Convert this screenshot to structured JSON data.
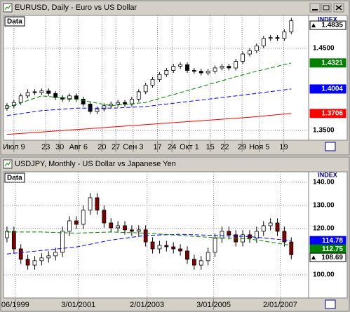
{
  "chart_data": [
    {
      "type": "candlestick",
      "title": "EURUSD, Daily - Euro vs US Dollar",
      "panel_label": "Data",
      "axis_header": "INDEX",
      "x": [
        0,
        1,
        2,
        3,
        4,
        5,
        6,
        7,
        8,
        9,
        10,
        11,
        12,
        13,
        14,
        15,
        16,
        17,
        18,
        19,
        20,
        21,
        22,
        23,
        24,
        25,
        26,
        27,
        28,
        29,
        30,
        31,
        32,
        33,
        34,
        35,
        36,
        37,
        38,
        39,
        40,
        41
      ],
      "open": [
        1.377,
        1.38,
        1.384,
        1.392,
        1.397,
        1.396,
        1.398,
        1.395,
        1.39,
        1.388,
        1.392,
        1.388,
        1.382,
        1.373,
        1.376,
        1.38,
        1.382,
        1.384,
        1.382,
        1.388,
        1.397,
        1.405,
        1.412,
        1.418,
        1.423,
        1.428,
        1.43,
        1.423,
        1.422,
        1.42,
        1.422,
        1.426,
        1.428,
        1.426,
        1.434,
        1.443,
        1.447,
        1.453,
        1.462,
        1.463,
        1.462,
        1.47
      ],
      "high": [
        1.383,
        1.387,
        1.395,
        1.4,
        1.4,
        1.401,
        1.401,
        1.398,
        1.393,
        1.395,
        1.395,
        1.391,
        1.385,
        1.379,
        1.383,
        1.385,
        1.387,
        1.387,
        1.391,
        1.4,
        1.408,
        1.415,
        1.421,
        1.426,
        1.431,
        1.433,
        1.433,
        1.426,
        1.425,
        1.425,
        1.429,
        1.431,
        1.431,
        1.437,
        1.446,
        1.45,
        1.456,
        1.465,
        1.466,
        1.466,
        1.473,
        1.487
      ],
      "low": [
        1.374,
        1.377,
        1.381,
        1.389,
        1.393,
        1.393,
        1.392,
        1.387,
        1.385,
        1.385,
        1.385,
        1.379,
        1.37,
        1.37,
        1.373,
        1.377,
        1.379,
        1.379,
        1.379,
        1.385,
        1.394,
        1.402,
        1.409,
        1.415,
        1.42,
        1.425,
        1.42,
        1.419,
        1.417,
        1.417,
        1.419,
        1.423,
        1.423,
        1.423,
        1.431,
        1.44,
        1.444,
        1.45,
        1.459,
        1.459,
        1.459,
        1.467
      ],
      "close": [
        1.38,
        1.384,
        1.392,
        1.396,
        1.396,
        1.398,
        1.395,
        1.39,
        1.388,
        1.392,
        1.388,
        1.382,
        1.373,
        1.376,
        1.38,
        1.382,
        1.384,
        1.382,
        1.388,
        1.397,
        1.405,
        1.412,
        1.418,
        1.423,
        1.428,
        1.43,
        1.423,
        1.422,
        1.42,
        1.422,
        1.426,
        1.428,
        1.426,
        1.434,
        1.443,
        1.447,
        1.453,
        1.462,
        1.463,
        1.462,
        1.47,
        1.4835
      ],
      "up_color": "#ffffff",
      "down_color": "#000000",
      "series": [
        {
          "color": "#ff0000",
          "dash": false,
          "x": [
            0,
            5,
            10,
            15,
            20,
            25,
            30,
            35,
            41
          ],
          "values": [
            1.345,
            1.348,
            1.351,
            1.354,
            1.357,
            1.36,
            1.363,
            1.366,
            1.3706
          ]
        },
        {
          "color": "#0000ff",
          "dash": true,
          "x": [
            0,
            5,
            10,
            15,
            20,
            25,
            30,
            35,
            41
          ],
          "values": [
            1.368,
            1.374,
            1.377,
            1.377,
            1.379,
            1.384,
            1.389,
            1.394,
            1.4004
          ]
        },
        {
          "color": "#008000",
          "dash": true,
          "x": [
            0,
            5,
            10,
            15,
            20,
            25,
            30,
            35,
            41
          ],
          "values": [
            1.378,
            1.392,
            1.388,
            1.38,
            1.384,
            1.396,
            1.408,
            1.42,
            1.4321
          ]
        }
      ],
      "xlim": [
        -0.5,
        43.5
      ],
      "ylim": [
        1.338,
        1.49
      ],
      "xticks": [
        {
          "value": 1.0,
          "label": "Июл 9"
        },
        {
          "value": 5.6,
          "label": "23"
        },
        {
          "value": 7.6,
          "label": "30"
        },
        {
          "value": 10.3,
          "label": "Авг 6"
        },
        {
          "value": 13.7,
          "label": "20"
        },
        {
          "value": 15.7,
          "label": "27"
        },
        {
          "value": 18.2,
          "label": "Сен 3"
        },
        {
          "value": 21.7,
          "label": "17"
        },
        {
          "value": 23.8,
          "label": "24"
        },
        {
          "value": 26.3,
          "label": "Окт 1"
        },
        {
          "value": 29.3,
          "label": "15"
        },
        {
          "value": 31.4,
          "label": "22"
        },
        {
          "value": 33.9,
          "label": "29"
        },
        {
          "value": 36.4,
          "label": "Ноя 5"
        },
        {
          "value": 39.9,
          "label": "19"
        }
      ],
      "yticks": [
        {
          "value": 1.35,
          "label": "1.3500"
        },
        {
          "value": 1.45,
          "label": "1.4500"
        }
      ],
      "grid": true
    },
    {
      "type": "candlestick",
      "title": "USDJPY, Monthly - US Dollar vs Japanese Yen",
      "panel_label": "Data",
      "axis_header": "INDEX",
      "x": [
        0,
        1,
        2,
        3,
        4,
        5,
        6,
        7,
        8,
        9,
        10,
        11,
        12,
        13,
        14,
        15,
        16,
        17,
        18,
        19,
        20,
        21,
        22,
        23,
        24,
        25,
        26,
        27,
        28,
        29,
        30,
        31,
        32,
        33,
        34,
        35,
        36,
        37,
        38,
        39,
        40,
        41
      ],
      "open": [
        116.0,
        118.8,
        111.2,
        106.7,
        104.2,
        106.1,
        107.3,
        108.2,
        109.7,
        118.8,
        123.3,
        121.8,
        127.9,
        133.3,
        127.9,
        122.4,
        120.3,
        121.2,
        119.4,
        118.8,
        119.4,
        114.2,
        111.2,
        112.7,
        112.1,
        111.2,
        110.3,
        106.7,
        104.2,
        106.1,
        109.7,
        115.8,
        118.8,
        117.3,
        114.2,
        117.3,
        115.8,
        118.8,
        121.2,
        122.4,
        118.8,
        114.2
      ],
      "high": [
        120.8,
        120.8,
        113.2,
        108.7,
        108.1,
        109.3,
        110.2,
        111.7,
        120.8,
        125.3,
        125.3,
        129.9,
        135.3,
        135.3,
        129.9,
        124.4,
        123.2,
        123.2,
        121.4,
        121.4,
        121.4,
        116.2,
        114.7,
        114.7,
        114.1,
        113.2,
        112.3,
        108.7,
        108.1,
        111.7,
        117.8,
        120.8,
        120.8,
        119.3,
        119.3,
        119.3,
        120.8,
        123.2,
        124.4,
        124.4,
        120.8,
        116.2
      ],
      "low": [
        114.0,
        109.2,
        104.7,
        102.2,
        102.2,
        104.1,
        105.3,
        106.2,
        107.7,
        116.8,
        119.8,
        119.8,
        125.9,
        125.9,
        120.4,
        118.3,
        118.3,
        117.4,
        116.8,
        116.8,
        112.2,
        109.2,
        109.2,
        110.1,
        109.2,
        108.3,
        104.7,
        102.2,
        102.2,
        104.1,
        107.7,
        113.8,
        115.3,
        112.2,
        112.2,
        113.8,
        113.8,
        116.8,
        119.2,
        116.8,
        112.2,
        106.69
      ],
      "close": [
        118.8,
        111.2,
        106.7,
        104.2,
        106.1,
        107.3,
        108.2,
        109.7,
        118.8,
        123.3,
        121.8,
        127.9,
        133.3,
        127.9,
        122.4,
        120.3,
        121.2,
        119.4,
        118.8,
        119.4,
        114.2,
        111.2,
        112.7,
        112.1,
        111.2,
        110.3,
        106.7,
        104.2,
        106.1,
        109.7,
        115.8,
        118.8,
        117.3,
        114.2,
        117.3,
        115.8,
        118.8,
        121.2,
        122.4,
        118.8,
        114.2,
        108.69
      ],
      "up_color": "#ffffff",
      "down_color": "#800000",
      "series": [
        {
          "color": "#0000ff",
          "dash": true,
          "x": [
            0,
            5,
            10,
            15,
            20,
            25,
            30,
            35,
            41
          ],
          "values": [
            109.0,
            110.5,
            112.0,
            115.0,
            117.0,
            117.5,
            117.0,
            116.5,
            114.78
          ]
        },
        {
          "color": "#008000",
          "dash": true,
          "x": [
            0,
            5,
            10,
            15,
            20,
            25,
            30,
            35,
            41
          ],
          "values": [
            118.5,
            118.5,
            118.0,
            118.5,
            118.0,
            117.0,
            116.0,
            115.5,
            112.75
          ]
        }
      ],
      "xlim": [
        -0.5,
        43.5
      ],
      "ylim": [
        90,
        144.5
      ],
      "xticks": [
        {
          "value": 1.2,
          "label": "06/1999"
        },
        {
          "value": 10.3,
          "label": "3/01/2001"
        },
        {
          "value": 20.2,
          "label": "2/01/2003"
        },
        {
          "value": 29.8,
          "label": "3/01/2005"
        },
        {
          "value": 39.4,
          "label": "2/01/2007"
        }
      ],
      "yticks": [
        {
          "value": 100,
          "label": "100.00"
        },
        {
          "value": 120,
          "label": "120.00"
        },
        {
          "value": 130,
          "label": "130.00"
        },
        {
          "value": 140,
          "label": "140.00"
        }
      ],
      "grid": true
    }
  ]
}
